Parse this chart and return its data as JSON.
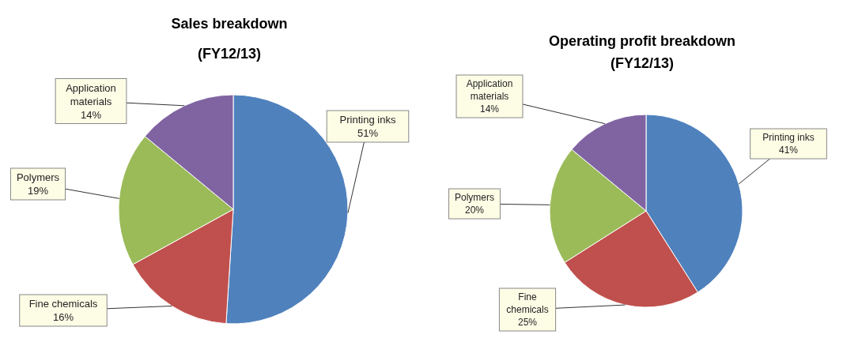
{
  "chart_data": [
    {
      "type": "pie",
      "title": "Sales breakdown",
      "subtitle": "(FY12/13)",
      "categories": [
        "Printing inks",
        "Fine chemicals",
        "Polymers",
        "Application materials"
      ],
      "values": [
        51,
        16,
        19,
        14
      ],
      "value_labels": [
        "51%",
        "16%",
        "19%",
        "14%"
      ],
      "colors": [
        "#4f81bd",
        "#c0504d",
        "#9bbb59",
        "#8064a2"
      ],
      "legend": false
    },
    {
      "type": "pie",
      "title": "Operating profit breakdown",
      "subtitle": "(FY12/13)",
      "categories": [
        "Printing inks",
        "Fine chemicals",
        "Polymers",
        "Application materials"
      ],
      "values": [
        41,
        25,
        20,
        14
      ],
      "value_labels": [
        "41%",
        "25%",
        "20%",
        "14%"
      ],
      "colors": [
        "#4f81bd",
        "#c0504d",
        "#9bbb59",
        "#8064a2"
      ],
      "legend": false
    }
  ]
}
